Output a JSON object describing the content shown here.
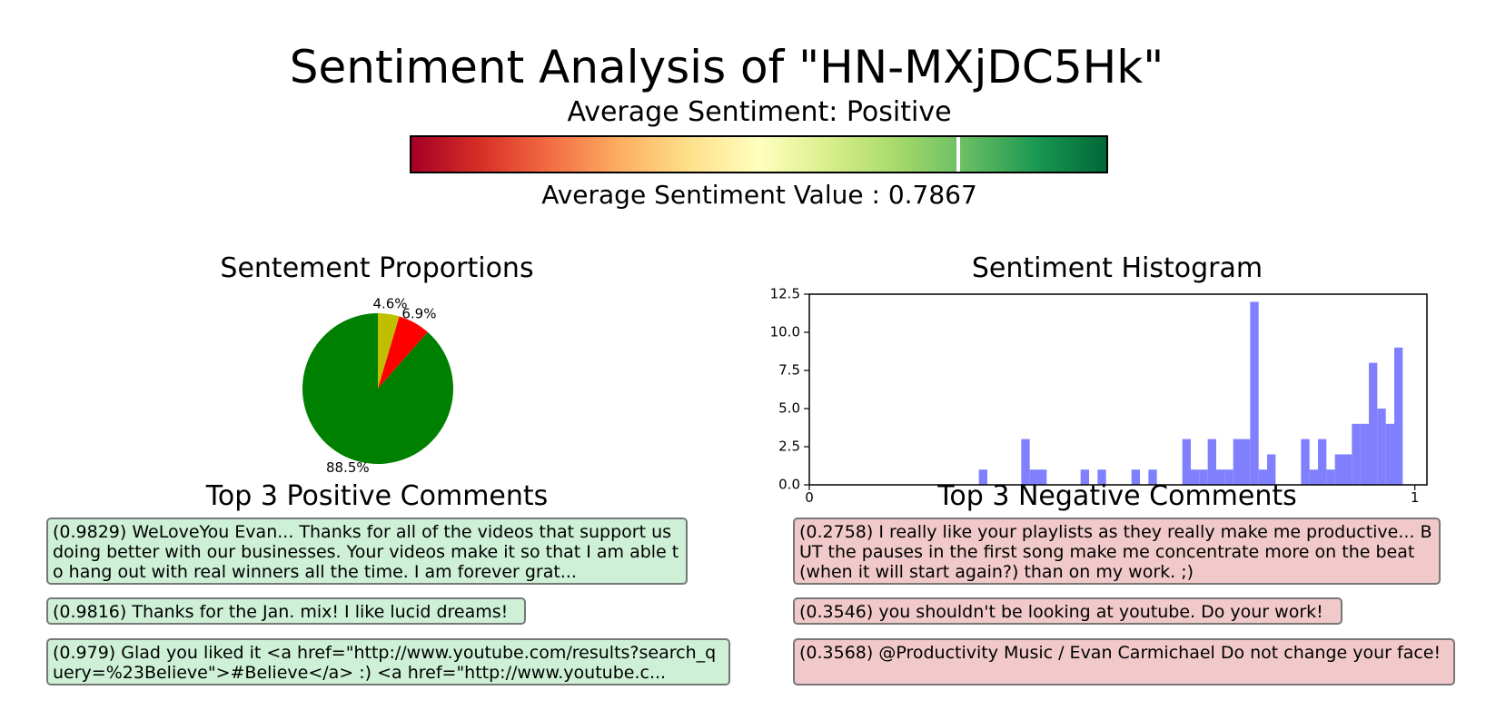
{
  "title": "Sentiment Analysis of \"HN-MXjDC5Hk\"",
  "average_label": "Average Sentiment: Positive",
  "average_value_label": "Average Sentiment Value : 0.7867",
  "average_value": 0.7867,
  "colors": {
    "positive": "#008000",
    "negative": "#ff0000",
    "neutral": "#bfbf00",
    "histogram": "#8080ff",
    "positive_box": "#cdf0d7",
    "negative_box": "#f1c9ca"
  },
  "chart_data": [
    {
      "type": "pie",
      "title": "Sentement Proportions",
      "slices": [
        {
          "label": "4.6%",
          "value": 4.6,
          "color": "#bfbf00"
        },
        {
          "label": "6.9%",
          "value": 6.9,
          "color": "#ff0000"
        },
        {
          "label": "88.5%",
          "value": 88.5,
          "color": "#008000"
        }
      ]
    },
    {
      "type": "bar",
      "title": "Sentiment Histogram",
      "xlim": [
        0,
        1.02
      ],
      "ylim": [
        0,
        12.5
      ],
      "xticks": [
        "0",
        "1"
      ],
      "yticks": [
        "0.0",
        "2.5",
        "5.0",
        "7.5",
        "10.0",
        "12.5"
      ],
      "bin_width": 0.014,
      "bins": [
        {
          "x": 0.28,
          "count": 1
        },
        {
          "x": 0.35,
          "count": 3
        },
        {
          "x": 0.364,
          "count": 1
        },
        {
          "x": 0.378,
          "count": 1
        },
        {
          "x": 0.448,
          "count": 1
        },
        {
          "x": 0.476,
          "count": 1
        },
        {
          "x": 0.532,
          "count": 1
        },
        {
          "x": 0.56,
          "count": 1
        },
        {
          "x": 0.616,
          "count": 3
        },
        {
          "x": 0.63,
          "count": 1
        },
        {
          "x": 0.644,
          "count": 1
        },
        {
          "x": 0.658,
          "count": 3
        },
        {
          "x": 0.672,
          "count": 1
        },
        {
          "x": 0.686,
          "count": 1
        },
        {
          "x": 0.7,
          "count": 3
        },
        {
          "x": 0.714,
          "count": 3
        },
        {
          "x": 0.728,
          "count": 12
        },
        {
          "x": 0.742,
          "count": 1
        },
        {
          "x": 0.756,
          "count": 2
        },
        {
          "x": 0.812,
          "count": 3
        },
        {
          "x": 0.826,
          "count": 1
        },
        {
          "x": 0.84,
          "count": 3
        },
        {
          "x": 0.854,
          "count": 1
        },
        {
          "x": 0.868,
          "count": 2
        },
        {
          "x": 0.882,
          "count": 2
        },
        {
          "x": 0.896,
          "count": 4
        },
        {
          "x": 0.91,
          "count": 4
        },
        {
          "x": 0.924,
          "count": 8
        },
        {
          "x": 0.938,
          "count": 5
        },
        {
          "x": 0.952,
          "count": 4
        },
        {
          "x": 0.966,
          "count": 9
        }
      ]
    }
  ],
  "positive": {
    "title": "Top 3 Positive Comments",
    "comments": [
      "(0.9829) WeLoveYou Evan... Thanks for all of the videos that support us doing better with our businesses. Your videos make it so that I am able to hang out with real winners all the time. I am forever grat...",
      "(0.9816) Thanks for the Jan. mix! I like lucid dreams!",
      "(0.979) Glad you liked it <a href=\"http://www.youtube.com/results?search_query=%23Believe\">#Believe</a> :) <a href=\"http://www.youtube.c..."
    ]
  },
  "negative": {
    "title": "Top 3 Negative Comments",
    "comments": [
      "(0.2758) I really like your playlists as they really make me productive... BUT the pauses in the first song make me concentrate more on the beat (when it will start again?) than on my work. ;)",
      "(0.3546) you shouldn't be looking at youtube. Do your work!",
      "(0.3568) @Productivity Music / Evan Carmichael Do not change your face!"
    ]
  }
}
